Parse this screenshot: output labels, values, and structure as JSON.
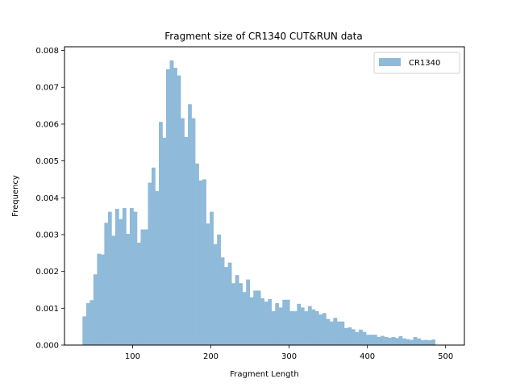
{
  "chart_data": {
    "type": "bar",
    "title": "Fragment size of CR1340 CUT&RUN data",
    "xlabel": "Fragment Length",
    "ylabel": "Frequency",
    "xlim": [
      13,
      524
    ],
    "ylim": [
      0,
      0.0081
    ],
    "xticks": [
      100,
      200,
      300,
      400,
      500
    ],
    "yticks": [
      0.0,
      0.001,
      0.002,
      0.003,
      0.004,
      0.005,
      0.006,
      0.007,
      0.008
    ],
    "ytick_labels": [
      "0.000",
      "0.001",
      "0.002",
      "0.003",
      "0.004",
      "0.005",
      "0.006",
      "0.007",
      "0.008"
    ],
    "xtick_labels": [
      "100",
      "200",
      "300",
      "400",
      "500"
    ],
    "legend": {
      "position": "top-right",
      "entries": [
        "CR1340"
      ]
    },
    "bin_start": 36,
    "bin_width": 4.645,
    "series": [
      {
        "name": "CR1340",
        "color": "#8fbad9",
        "values": [
          0.00078,
          0.00114,
          0.00122,
          0.00192,
          0.00248,
          0.00246,
          0.00332,
          0.00362,
          0.00297,
          0.0037,
          0.00342,
          0.00372,
          0.00302,
          0.00372,
          0.00362,
          0.00278,
          0.00314,
          0.00314,
          0.00441,
          0.00482,
          0.00418,
          0.00606,
          0.00563,
          0.00749,
          0.00773,
          0.00753,
          0.00732,
          0.00616,
          0.00565,
          0.00654,
          0.00616,
          0.00493,
          0.00447,
          0.0045,
          0.0033,
          0.00362,
          0.00274,
          0.003,
          0.00238,
          0.00212,
          0.00224,
          0.00168,
          0.0019,
          0.00168,
          0.00144,
          0.00178,
          0.0013,
          0.00148,
          0.00148,
          0.00127,
          0.00118,
          0.00125,
          0.00092,
          0.00114,
          0.00102,
          0.00123,
          0.00123,
          0.00092,
          0.00092,
          0.00112,
          0.00102,
          0.00092,
          0.00106,
          0.00097,
          0.00092,
          0.00083,
          0.00087,
          0.00071,
          0.00064,
          0.00074,
          0.00064,
          0.00064,
          0.00046,
          0.00048,
          0.00043,
          0.00035,
          0.00042,
          0.00036,
          0.00028,
          0.00028,
          0.00028,
          0.00022,
          0.00025,
          0.00022,
          0.0002,
          0.00022,
          0.00019,
          0.00024,
          0.00018,
          0.00016,
          0.00014,
          0.00022,
          0.00018,
          0.00013,
          0.00014,
          0.00013,
          0.00015
        ]
      }
    ]
  }
}
